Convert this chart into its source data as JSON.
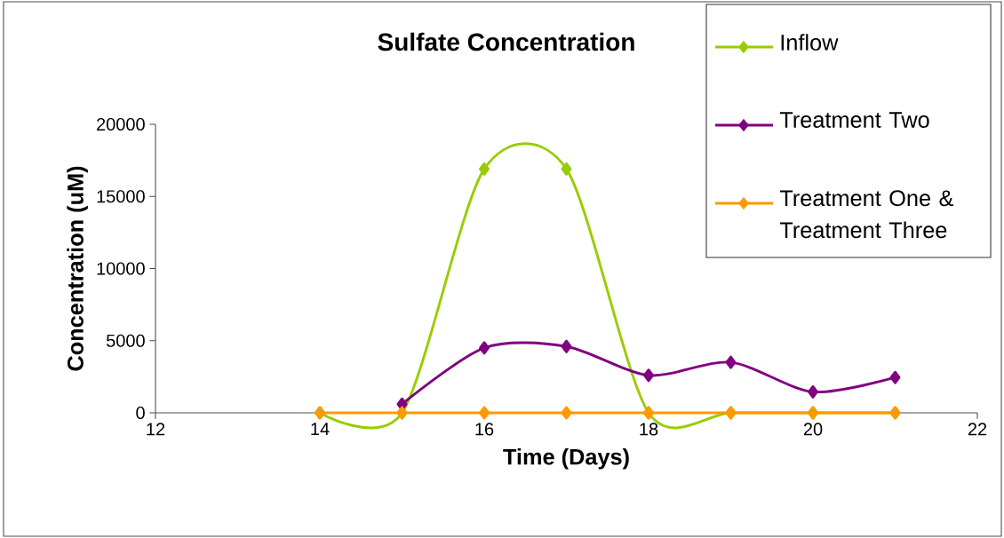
{
  "chart_data": {
    "type": "line",
    "title": "Sulfate Concentration",
    "xlabel": "Time (Days)",
    "ylabel": "Concentration (uM)",
    "x": [
      14,
      15,
      16,
      17,
      18,
      19,
      20,
      21
    ],
    "series": [
      {
        "name": "Inflow",
        "color": "#99cc00",
        "values": [
          0,
          0,
          16900,
          16900,
          0,
          0,
          0,
          0
        ]
      },
      {
        "name": "Treatment Two",
        "color": "#800080",
        "x": [
          15,
          16,
          17,
          18,
          19,
          20,
          21
        ],
        "values": [
          600,
          4500,
          4600,
          2600,
          3500,
          1450,
          2450
        ]
      },
      {
        "name": "Treatment One & Treatment Three",
        "color": "#ff9900",
        "values": [
          0,
          0,
          0,
          0,
          0,
          0,
          0,
          0
        ]
      }
    ],
    "xlim": [
      12,
      22
    ],
    "xticks": [
      12,
      14,
      16,
      18,
      20,
      22
    ],
    "ylim": [
      0,
      20000
    ],
    "yticks": [
      0,
      5000,
      10000,
      15000,
      20000
    ],
    "grid": false,
    "legend": "top right",
    "marker": "diamond",
    "line_style": "solid"
  }
}
